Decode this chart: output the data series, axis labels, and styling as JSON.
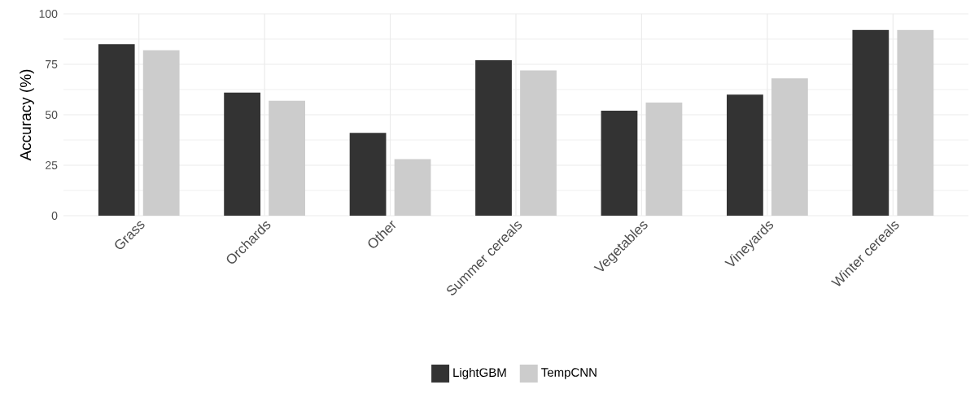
{
  "chart_data": {
    "type": "bar",
    "ylabel": "Accuracy (%)",
    "categories": [
      "Grass",
      "Orchards",
      "Other",
      "Summer cereals",
      "Vegetables",
      "Vineyards",
      "Winter cereals"
    ],
    "series": [
      {
        "name": "LightGBM",
        "color": "#333333",
        "values": [
          85,
          61,
          41,
          77,
          52,
          60,
          92
        ]
      },
      {
        "name": "TempCNN",
        "color": "#cccccc",
        "values": [
          82,
          57,
          28,
          72,
          56,
          68,
          92
        ]
      }
    ],
    "ylim": [
      0,
      100
    ],
    "yticks": [
      0,
      25,
      50,
      75,
      100
    ],
    "grid": true,
    "legend": "bottom"
  }
}
